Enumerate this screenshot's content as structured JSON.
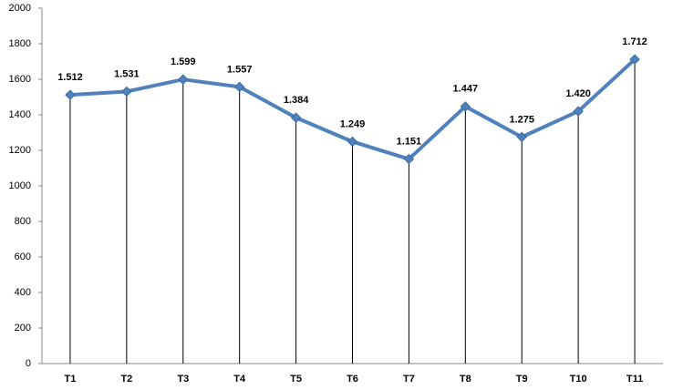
{
  "chart_data": {
    "type": "line",
    "categories": [
      "T1",
      "T2",
      "T3",
      "T4",
      "T5",
      "T6",
      "T7",
      "T8",
      "T9",
      "T10",
      "T11"
    ],
    "values": [
      1512,
      1531,
      1599,
      1557,
      1384,
      1249,
      1151,
      1447,
      1275,
      1420,
      1712
    ],
    "value_labels": [
      "1.512",
      "1.531",
      "1.599",
      "1.557",
      "1.384",
      "1.249",
      "1.151",
      "1.447",
      "1.275",
      "1.420",
      "1.712"
    ],
    "color": "#4f81bd",
    "ylim": [
      0,
      2000
    ],
    "yticks": [
      0,
      200,
      400,
      600,
      800,
      1000,
      1200,
      1400,
      1600,
      1800,
      2000
    ],
    "drop_lines": true
  }
}
